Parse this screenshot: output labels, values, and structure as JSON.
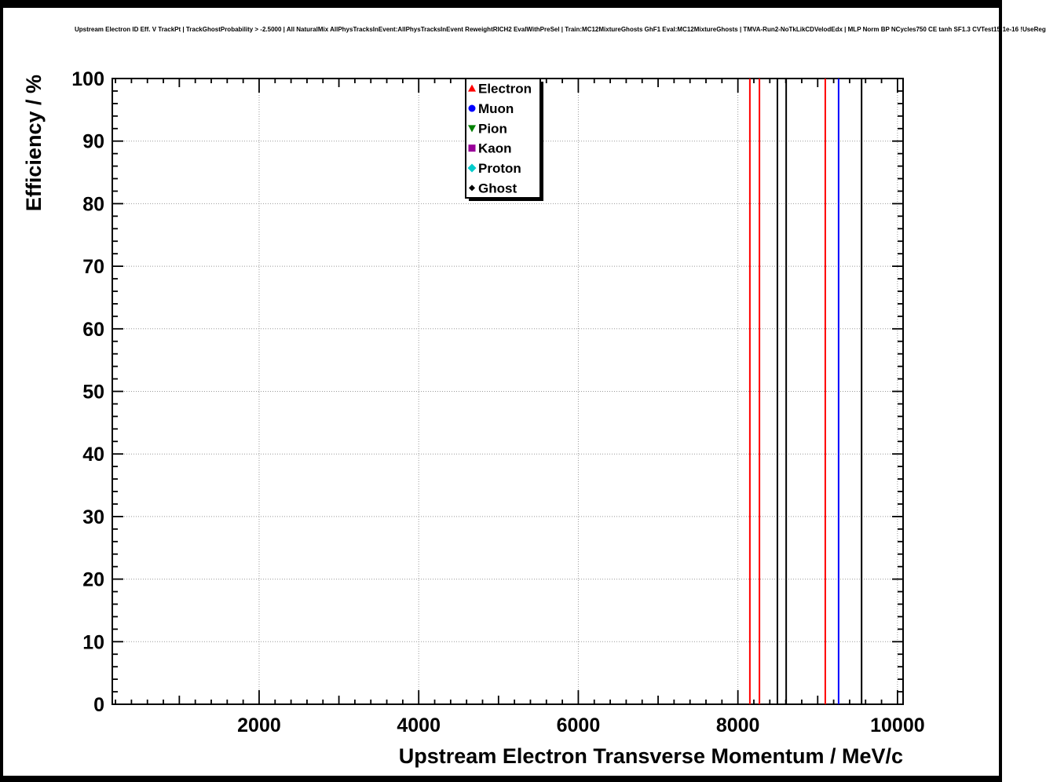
{
  "header": {
    "title": "Upstream Electron ID Eff. V TrackPt | TrackGhostProbability > -2.5000 | All NaturalMix AllPhysTracksInEvent:AllPhysTracksInEvent ReweightRICH2 EvalWithPreSel | Train:MC12MixtureGhosts GhF1 Eval:MC12MixtureGhosts | TMVA-Run2-NoTkLikCDVelodEdx | MLP Norm BP NCycles750 CE tanh SF1.3 CVTest15:1e-16 !UseReg"
  },
  "colors": {
    "background": "#ffffff",
    "frame": "#000000",
    "grid": "#999999"
  },
  "chart_data": {
    "type": "scatter",
    "title": "",
    "xlabel": "Upstream Electron Transverse Momentum / MeV/c",
    "ylabel": "Efficiency / %",
    "xlim": [
      160,
      10070
    ],
    "ylim": [
      0,
      100
    ],
    "x_ticks": [
      2000,
      4000,
      6000,
      8000,
      10000
    ],
    "x_tick_labels": [
      "2000",
      "4000",
      "6000",
      "8000",
      "10000"
    ],
    "x_minor_step": 200,
    "x_medium_step": 1000,
    "y_ticks": [
      0,
      10,
      20,
      30,
      40,
      50,
      60,
      70,
      80,
      90,
      100
    ],
    "y_minor_step": 2,
    "grid": {
      "style": "dotted",
      "color": "#999999"
    },
    "error_bar_y_range": [
      0,
      100
    ],
    "series": [
      {
        "name": "Electron",
        "marker": "triangle-up",
        "color": "#ff0000",
        "error_bar_x": [
          8150,
          8270,
          9095
        ]
      },
      {
        "name": "Muon",
        "marker": "circle",
        "color": "#0000ff",
        "error_bar_x": [
          9262
        ]
      },
      {
        "name": "Pion",
        "marker": "triangle-down",
        "color": "#008000",
        "error_bar_x": []
      },
      {
        "name": "Kaon",
        "marker": "square",
        "color": "#990099",
        "error_bar_x": []
      },
      {
        "name": "Proton",
        "marker": "diamond",
        "color": "#00cccc",
        "error_bar_x": []
      },
      {
        "name": "Ghost",
        "marker": "diamond-small",
        "color": "#000000",
        "error_bar_x": [
          8495,
          8605,
          9550
        ]
      }
    ],
    "legend": {
      "position": "top-center",
      "entries": [
        "Electron",
        "Muon",
        "Pion",
        "Kaon",
        "Proton",
        "Ghost"
      ]
    }
  }
}
